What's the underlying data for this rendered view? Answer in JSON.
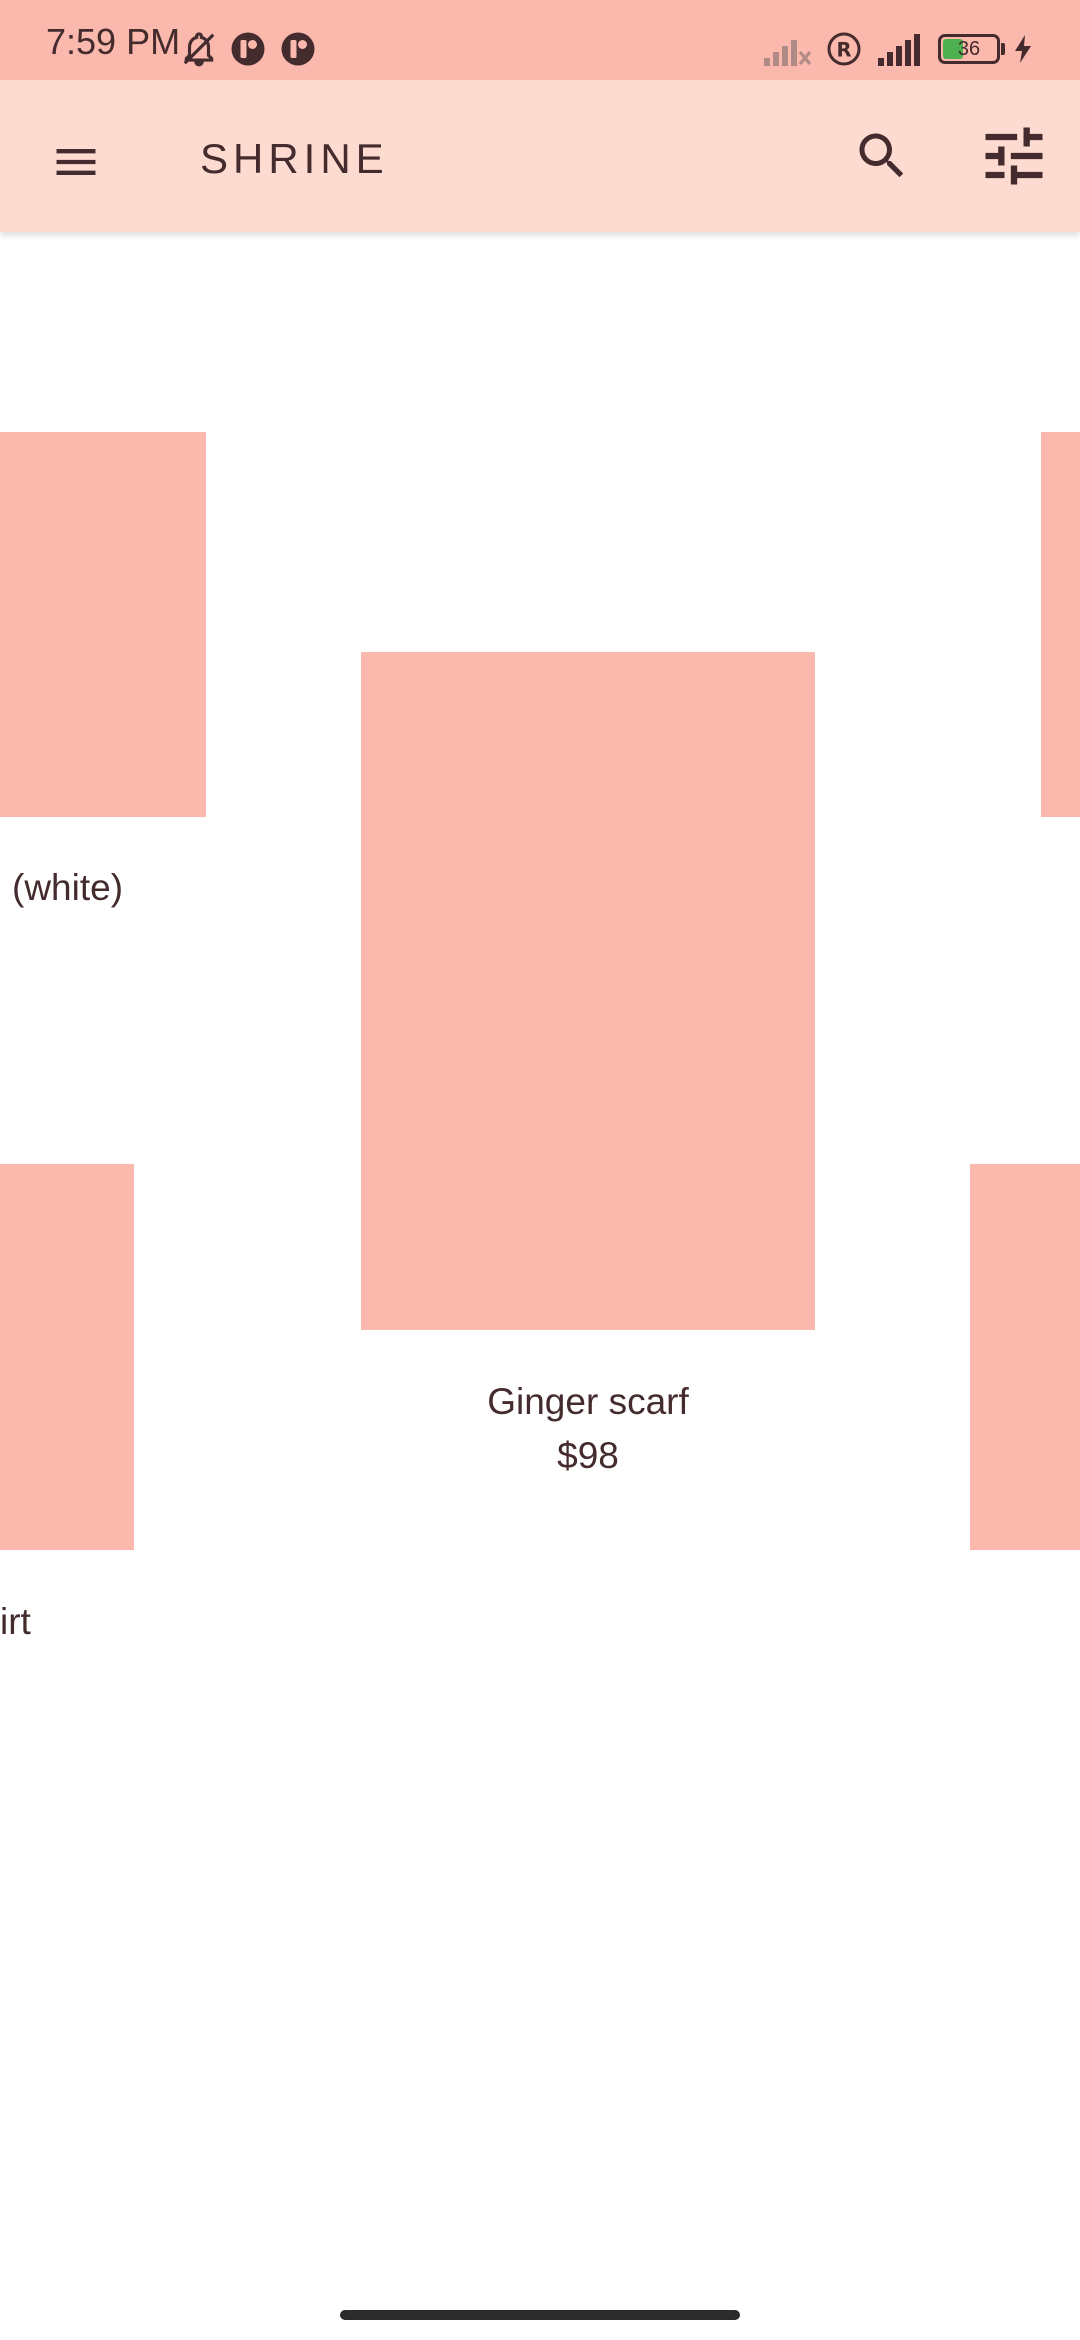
{
  "status_bar": {
    "time": "7:59 PM",
    "battery_level": "36",
    "icons": [
      "mute-bell-icon",
      "app-notification-icon",
      "app-notification-icon",
      "no-signal-icon",
      "roaming-icon",
      "signal-icon",
      "battery-icon",
      "charging-icon"
    ]
  },
  "app_bar": {
    "title": "SHRINE",
    "menu_icon": "menu-icon",
    "search_icon": "search-icon",
    "filter_icon": "tune-icon"
  },
  "products": [
    {
      "name": "(white)",
      "price": ""
    },
    {
      "name": "Ginger scarf",
      "price": "$98"
    },
    {
      "name": "irt",
      "price": ""
    }
  ],
  "colors": {
    "status_bar_bg": "#fbb8ac",
    "app_bar_bg": "#fedbd0",
    "card_placeholder": "#fbb8ac",
    "text": "#442b2d"
  }
}
